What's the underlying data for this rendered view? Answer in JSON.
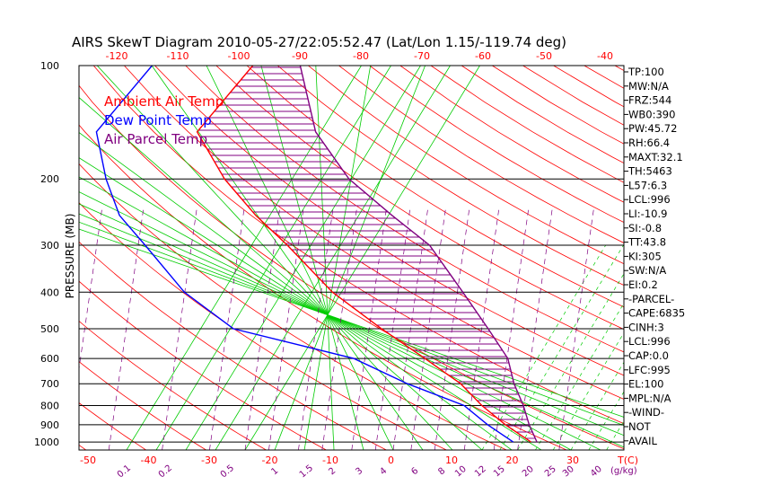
{
  "chart_data": {
    "type": "skew-t",
    "title": "AIRS SkewT Diagram 2010-05-27/22:05:52.47 (Lat/Lon 1.15/-119.74 deg)",
    "ylabel": "PRESSURE (MB)",
    "xunit_label": "T(C)",
    "mixing_unit_label": "(g/kg)",
    "pressure_ticks": [
      "100",
      "200",
      "300",
      "400",
      "500",
      "600",
      "700",
      "800",
      "900",
      "1000"
    ],
    "top_temp_ticks": [
      "-120",
      "-110",
      "-100",
      "-90",
      "-80",
      "-70",
      "-60",
      "-50",
      "-40"
    ],
    "bottom_temp_ticks": [
      "-50",
      "-40",
      "-30",
      "-20",
      "-10",
      "0",
      "10",
      "20",
      "30"
    ],
    "mixing_ratio_labels": [
      "0.1",
      "0.2",
      "0.5",
      "1",
      "1.5",
      "2",
      "3",
      "4",
      "6",
      "8",
      "10",
      "12",
      "15",
      "20",
      "25",
      "30",
      "40"
    ],
    "legend": [
      {
        "name": "Ambient Air Temp",
        "color": "#ff0000"
      },
      {
        "name": "Dew Point Temp",
        "color": "#0000ff"
      },
      {
        "name": "Air Parcel Temp",
        "color": "#800080"
      }
    ],
    "colors": {
      "dry_adiabat": "#ff0000",
      "moist_adiabat": "#00cc00",
      "mixing_ratio": "#800080",
      "isobar": "#000000",
      "cape_hatch": "#800080"
    },
    "series": [
      {
        "name": "Ambient Air Temp",
        "points": [
          [
            100,
            -79
          ],
          [
            150,
            -78
          ],
          [
            200,
            -66
          ],
          [
            250,
            -55
          ],
          [
            300,
            -45
          ],
          [
            400,
            -30
          ],
          [
            500,
            -16
          ],
          [
            600,
            -4
          ],
          [
            700,
            6
          ],
          [
            800,
            13
          ],
          [
            900,
            20
          ],
          [
            1000,
            27
          ]
        ]
      },
      {
        "name": "Dew Point Temp",
        "points": [
          [
            100,
            -96
          ],
          [
            150,
            -95
          ],
          [
            200,
            -86
          ],
          [
            250,
            -78
          ],
          [
            300,
            -69
          ],
          [
            400,
            -55
          ],
          [
            500,
            -41
          ],
          [
            600,
            -16
          ],
          [
            700,
            -3
          ],
          [
            800,
            10
          ],
          [
            900,
            17
          ],
          [
            1000,
            24
          ]
        ]
      },
      {
        "name": "Air Parcel Temp",
        "points": [
          [
            100,
            -71
          ],
          [
            150,
            -58
          ],
          [
            200,
            -45
          ],
          [
            250,
            -32
          ],
          [
            300,
            -21
          ],
          [
            400,
            -8
          ],
          [
            500,
            2
          ],
          [
            600,
            10
          ],
          [
            700,
            15
          ],
          [
            800,
            20
          ],
          [
            900,
            24
          ],
          [
            1000,
            28
          ]
        ]
      }
    ],
    "indices": [
      "TP:100",
      "MW:N/A",
      "FRZ:544",
      "WB0:390",
      "PW:45.72",
      "RH:66.4",
      "MAXT:32.1",
      "TH:5463",
      "L57:6.3",
      "LCL:996",
      "LI:-10.9",
      "SI:-0.8",
      "TT:43.8",
      "KI:305",
      "SW:N/A",
      "EI:0.2",
      "-PARCEL-",
      "CAPE:6835",
      "CINH:3",
      "LCL:996",
      "CAP:0.0",
      "LFC:995",
      "EL:100",
      "MPL:N/A",
      "-WIND-",
      "NOT",
      "AVAIL"
    ]
  }
}
